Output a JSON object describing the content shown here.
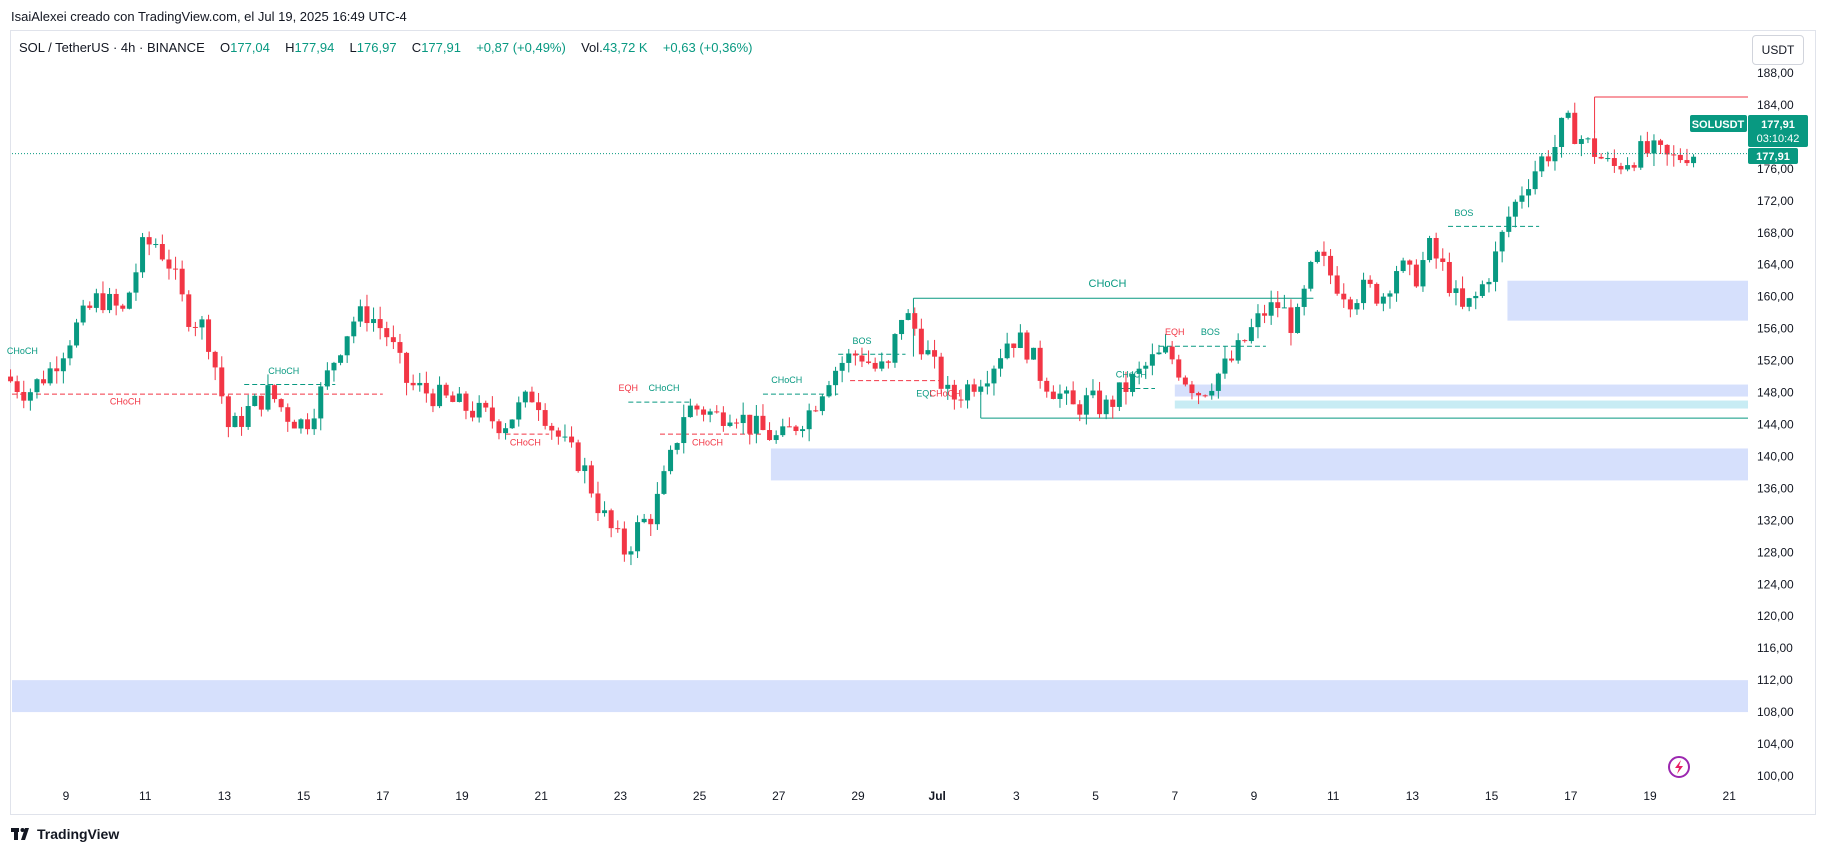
{
  "credit": "IsaiAlexei creado con TradingView.com, el Jul 19, 2025 16:49 UTC-4",
  "legend": {
    "symbol": "SOL / TetherUS",
    "interval": "4h",
    "exchange": "BINANCE",
    "open_label": "O",
    "open": "177,04",
    "high_label": "H",
    "high": "177,94",
    "low_label": "L",
    "low": "176,97",
    "close_label": "C",
    "close": "177,91",
    "change": "+0,87 (+0,49%)",
    "vol_label": "Vol.",
    "vol": "43,72 K",
    "vol_change": "+0,63 (+0,36%)"
  },
  "currency": "USDT",
  "footer": {
    "brand": "TradingView"
  },
  "badges": {
    "symbol": "SOLUSDT",
    "price": "177,91",
    "countdown": "03:10:42",
    "last": "177,91"
  },
  "colors": {
    "up": "#089981",
    "down": "#f23645",
    "zone": "#d6e0fc",
    "zone_light": "#c8ecf4",
    "text": "#131722",
    "badge_green": "#089981"
  },
  "chart_data": {
    "type": "candlestick",
    "title": "SOL / TetherUS · 4h · BINANCE",
    "ylim": [
      98,
      190
    ],
    "y_ticks": [
      "188,00",
      "184,00",
      "180,00",
      "176,00",
      "172,00",
      "168,00",
      "164,00",
      "160,00",
      "156,00",
      "152,00",
      "148,00",
      "144,00",
      "140,00",
      "136,00",
      "132,00",
      "128,00",
      "124,00",
      "120,00",
      "116,00",
      "112,00",
      "108,00",
      "104,00",
      "100,00"
    ],
    "x_ticks": [
      "9",
      "11",
      "13",
      "15",
      "17",
      "19",
      "21",
      "23",
      "25",
      "27",
      "29",
      "Jul",
      "3",
      "5",
      "7",
      "9",
      "11",
      "13",
      "15",
      "17",
      "19",
      "21"
    ],
    "x_tick_days": [
      9,
      11,
      13,
      15,
      17,
      19,
      21,
      23,
      25,
      27,
      29,
      31,
      33,
      35,
      37,
      39,
      41,
      43,
      45,
      47,
      49,
      51
    ],
    "day_start": 7.6,
    "day_end": 51.5,
    "candle_path_days": [
      7.6,
      8.2,
      8.8,
      9.4,
      10.0,
      10.6,
      11.1,
      11.4,
      11.8,
      12.2,
      12.7,
      13.0,
      13.3,
      13.8,
      14.3,
      14.8,
      15.2,
      15.6,
      16.0,
      16.4,
      16.8,
      17.3,
      17.8,
      18.3,
      18.8,
      19.3,
      19.8,
      20.2,
      20.6,
      21.0,
      21.4,
      21.8,
      22.2,
      22.6,
      22.9,
      23.3,
      23.6,
      24.0,
      24.4,
      24.8,
      25.2,
      25.6,
      26.0,
      26.4,
      26.8,
      27.2,
      27.6,
      28.0,
      28.4,
      28.8,
      29.2,
      29.6,
      30.0,
      30.2,
      30.5,
      31.0,
      31.5,
      32.0,
      32.5,
      33.0,
      33.4,
      33.8,
      34.2,
      34.6,
      35.0,
      35.4,
      35.8,
      36.2,
      36.6,
      37.0,
      37.4,
      37.8,
      38.2,
      38.6,
      39.0,
      39.4,
      39.8,
      40.2,
      40.6,
      40.8,
      41.2,
      41.6,
      42.0,
      42.4,
      42.8,
      43.2,
      43.6,
      44.0,
      44.4,
      44.8,
      45.2,
      45.6,
      46.0,
      46.4,
      46.8,
      47.0,
      47.4,
      47.8,
      48.2,
      48.5,
      48.9,
      49.3,
      49.7,
      50.1
    ],
    "candle_path_prices": [
      150,
      148,
      151,
      156,
      160,
      158,
      166,
      167,
      164,
      158,
      156,
      150,
      143,
      146,
      148,
      145,
      144,
      148,
      153,
      157,
      158,
      155,
      149,
      148,
      147,
      146,
      145,
      144,
      146,
      148,
      144,
      141,
      139,
      134,
      131,
      128,
      131,
      133,
      139,
      146,
      146,
      145,
      146,
      144,
      143,
      142,
      144,
      146,
      150,
      152,
      153,
      151,
      151,
      158,
      157,
      152,
      147,
      149,
      151,
      155,
      154,
      150,
      148,
      146,
      147,
      146,
      148,
      150,
      152,
      153,
      150,
      148,
      150,
      152,
      155,
      158,
      159,
      156,
      163,
      165,
      162,
      160,
      161,
      160,
      164,
      162,
      166,
      163,
      158,
      160,
      164,
      170,
      174,
      177,
      179,
      182,
      180,
      178,
      176,
      177,
      178,
      178,
      177,
      178
    ],
    "zones": [
      {
        "label": "demand-zone-low",
        "from_day": 7.6,
        "to_day": 51.5,
        "top": 112,
        "bottom": 108
      },
      {
        "label": "demand-zone-mid",
        "from_day": 26.8,
        "to_day": 51.5,
        "top": 141,
        "bottom": 137
      },
      {
        "label": "demand-zone-1",
        "from_day": 37.0,
        "to_day": 51.5,
        "top": 149,
        "bottom": 147.5
      },
      {
        "label": "demand-zone-2",
        "from_day": 37.0,
        "to_day": 51.5,
        "top": 147,
        "bottom": 146
      },
      {
        "label": "demand-zone-3",
        "from_day": 45.4,
        "to_day": 51.5,
        "top": 162,
        "bottom": 157
      }
    ],
    "structure_lines": [
      {
        "from_day": 30.4,
        "to_day": 40.5,
        "price": 159.8,
        "color": "up",
        "style": "solid",
        "label": "CHoCH"
      },
      {
        "from_day": 32.1,
        "to_day": 51.5,
        "price": 144.8,
        "color": "up",
        "style": "solid",
        "label": ""
      },
      {
        "from_day": 7.6,
        "to_day": 17.0,
        "price": 147.8,
        "color": "down",
        "style": "dashed",
        "label": "CHoCH"
      },
      {
        "from_day": 13.5,
        "to_day": 15.8,
        "price": 149.0,
        "color": "up",
        "style": "dashed",
        "label": "CHoCH"
      },
      {
        "from_day": 20.1,
        "to_day": 21.2,
        "price": 142.8,
        "color": "down",
        "style": "dashed",
        "label": "CHoCH"
      },
      {
        "from_day": 24.0,
        "to_day": 26.6,
        "price": 142.8,
        "color": "down",
        "style": "dashed",
        "label": "CHoCH"
      },
      {
        "from_day": 23.2,
        "to_day": 24.8,
        "price": 146.8,
        "color": "up",
        "style": "dashed",
        "label": "CHoCH"
      },
      {
        "from_day": 26.6,
        "to_day": 28.5,
        "price": 147.8,
        "color": "up",
        "style": "dashed",
        "label": "CHoCH"
      },
      {
        "from_day": 28.5,
        "to_day": 30.2,
        "price": 152.8,
        "color": "up",
        "style": "dashed",
        "label": "BOS"
      },
      {
        "from_day": 28.8,
        "to_day": 31.2,
        "price": 149.5,
        "color": "down",
        "style": "dashed",
        "label": "CHoCH"
      },
      {
        "from_day": 35.6,
        "to_day": 36.5,
        "price": 148.5,
        "color": "up",
        "style": "dashed",
        "label": "CHoCH"
      },
      {
        "from_day": 36.6,
        "to_day": 39.3,
        "price": 153.8,
        "color": "up",
        "style": "dashed",
        "label": "BOS"
      },
      {
        "from_day": 43.9,
        "to_day": 46.2,
        "price": 168.8,
        "color": "up",
        "style": "dashed",
        "label": "BOS"
      },
      {
        "from_day": 47.6,
        "to_day": 51.5,
        "price": 185.0,
        "color": "down",
        "style": "solid",
        "label": ""
      }
    ],
    "annotations": [
      {
        "text": "CHoCH",
        "day": 7.9,
        "price": 152.8,
        "color": "up"
      },
      {
        "text": "CHoCH",
        "day": 10.5,
        "price": 146.5,
        "color": "down"
      },
      {
        "text": "CHoCH",
        "day": 14.5,
        "price": 150.3,
        "color": "up"
      },
      {
        "text": "CHoCH",
        "day": 20.6,
        "price": 141.4,
        "color": "down"
      },
      {
        "text": "EQH",
        "day": 23.2,
        "price": 148.2,
        "color": "down"
      },
      {
        "text": "CHoCH",
        "day": 24.1,
        "price": 148.2,
        "color": "up"
      },
      {
        "text": "CHoCH",
        "day": 25.2,
        "price": 141.4,
        "color": "down"
      },
      {
        "text": "CHoCH",
        "day": 27.2,
        "price": 149.2,
        "color": "up"
      },
      {
        "text": "BOS",
        "day": 29.1,
        "price": 154.1,
        "color": "up"
      },
      {
        "text": "EQL",
        "day": 30.7,
        "price": 147.5,
        "color": "up"
      },
      {
        "text": "CHoCH",
        "day": 31.2,
        "price": 147.5,
        "color": "down"
      },
      {
        "text": "CHoCH",
        "day": 35.3,
        "price": 161.2,
        "color": "up"
      },
      {
        "text": "CHoCH",
        "day": 35.9,
        "price": 149.9,
        "color": "up"
      },
      {
        "text": "EQH",
        "day": 37.0,
        "price": 155.2,
        "color": "down"
      },
      {
        "text": "BOS",
        "day": 37.9,
        "price": 155.2,
        "color": "up"
      },
      {
        "text": "BOS",
        "day": 44.3,
        "price": 170.1,
        "color": "up"
      }
    ]
  }
}
